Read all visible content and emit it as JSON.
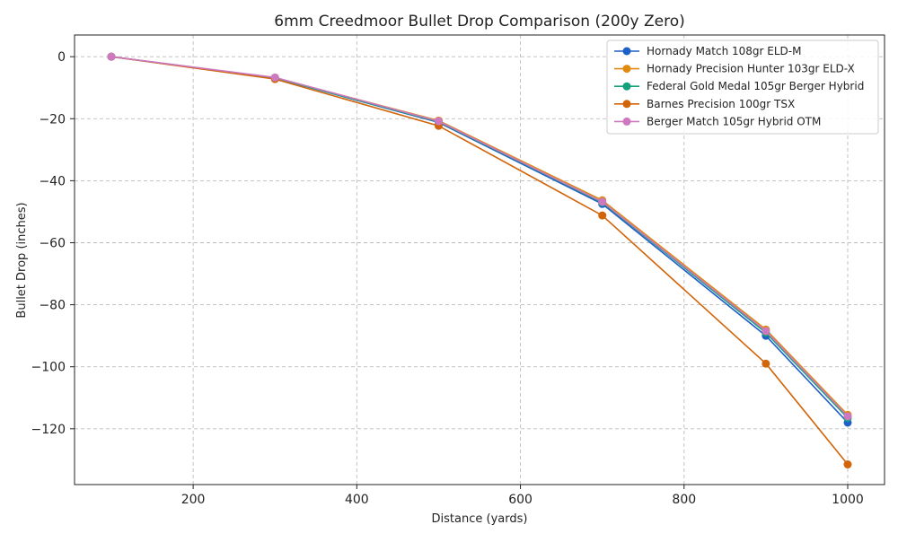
{
  "chart_data": {
    "type": "line",
    "title": "6mm Creedmoor Bullet Drop Comparison (200y Zero)",
    "xlabel": "Distance (yards)",
    "ylabel": "Bullet Drop (inches)",
    "x": [
      100,
      300,
      500,
      700,
      900,
      1000
    ],
    "xlim": [
      55,
      1045
    ],
    "ylim": [
      -138,
      7
    ],
    "xticks": [
      200,
      400,
      600,
      800,
      1000
    ],
    "yticks": [
      0,
      -20,
      -40,
      -60,
      -80,
      -100,
      -120
    ],
    "grid": true,
    "legend_position": "top-right",
    "series": [
      {
        "name": "Hornady Match 108gr ELD-M",
        "color": "#1f5fc8",
        "values": [
          0,
          -6.9,
          -21.2,
          -47.5,
          -90.0,
          -118.0
        ]
      },
      {
        "name": "Hornady Precision Hunter 103gr ELD-X",
        "color": "#e08a10",
        "values": [
          0,
          -6.8,
          -20.6,
          -46.3,
          -88.0,
          -115.5
        ]
      },
      {
        "name": "Federal Gold Medal 105gr Berger Hybrid",
        "color": "#12a07a",
        "values": [
          0,
          -6.9,
          -21.0,
          -47.0,
          -89.0,
          -116.5
        ]
      },
      {
        "name": "Barnes Precision 100gr TSX",
        "color": "#d2640a",
        "values": [
          0,
          -7.2,
          -22.3,
          -51.2,
          -99.0,
          -131.5
        ]
      },
      {
        "name": "Berger Match 105gr Hybrid OTM",
        "color": "#cc79c0",
        "values": [
          0,
          -6.7,
          -20.8,
          -46.8,
          -88.5,
          -116.0
        ]
      }
    ]
  }
}
